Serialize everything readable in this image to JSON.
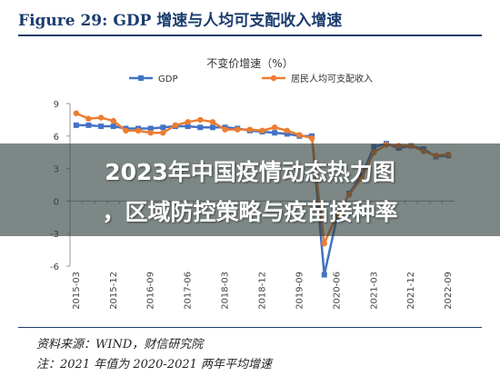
{
  "figure": {
    "title": "Figure 29:   GDP 增速与人均可支配收入增速"
  },
  "chart_data": {
    "type": "line",
    "title": "不变价增速（%）",
    "x": [
      "2015-03",
      "2015-06",
      "2015-09",
      "2015-12",
      "2016-03",
      "2016-06",
      "2016-09",
      "2016-12",
      "2017-03",
      "2017-06",
      "2017-09",
      "2017-12",
      "2018-03",
      "2018-06",
      "2018-09",
      "2018-12",
      "2019-03",
      "2019-06",
      "2019-09",
      "2019-12",
      "2020-03",
      "2020-06",
      "2020-09",
      "2020-12",
      "2021-03",
      "2021-06",
      "2021-09",
      "2021-12",
      "2022-03",
      "2022-06",
      "2022-09"
    ],
    "x_tick_labels": [
      "2015-03",
      "2015-12",
      "2016-09",
      "2017-06",
      "2018-03",
      "2018-12",
      "2019-09",
      "2020-06",
      "2021-03",
      "2021-12",
      "2022-09"
    ],
    "series": [
      {
        "name": "GDP",
        "color": "#4472c4",
        "marker": "square",
        "values": [
          7.0,
          7.0,
          6.9,
          6.9,
          6.7,
          6.7,
          6.7,
          6.8,
          6.9,
          6.9,
          6.8,
          6.8,
          6.8,
          6.7,
          6.5,
          6.4,
          6.3,
          6.2,
          6.0,
          6.0,
          -6.8,
          -1.6,
          0.7,
          2.3,
          5.0,
          5.3,
          4.9,
          5.1,
          4.8,
          4.1,
          4.2
        ]
      },
      {
        "name": "居民人均可支配收入",
        "color": "#ed7d31",
        "marker": "circle",
        "values": [
          8.1,
          7.6,
          7.7,
          7.4,
          6.5,
          6.5,
          6.3,
          6.3,
          7.0,
          7.3,
          7.5,
          7.3,
          6.6,
          6.6,
          6.6,
          6.5,
          6.8,
          6.5,
          6.1,
          5.8,
          -3.9,
          -1.3,
          0.6,
          2.1,
          4.5,
          5.2,
          5.1,
          5.1,
          4.6,
          4.2,
          4.3
        ]
      }
    ],
    "ylim": [
      -6,
      9
    ],
    "yticks": [
      9,
      6,
      3,
      0,
      -3,
      -6
    ],
    "legend_position": "top",
    "grid": false
  },
  "source": {
    "line1": "资料来源：WIND，财信研究院",
    "line2": "注：2021 年值为 2020-2021 两年平均增速"
  },
  "overlay": {
    "line1": "2023年中国疫情动态热力图",
    "line2": "，区域防控策略与疫苗接种率"
  }
}
